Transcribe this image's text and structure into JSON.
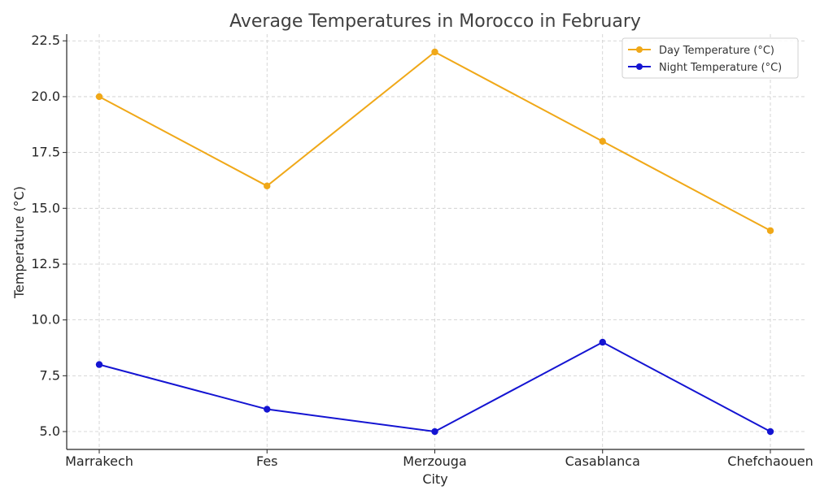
{
  "chart_data": {
    "type": "line",
    "title": "Average Temperatures in Morocco in February",
    "xlabel": "City",
    "ylabel": "Temperature (°C)",
    "categories": [
      "Marrakech",
      "Fes",
      "Merzouga",
      "Casablanca",
      "Chefchaouen"
    ],
    "yticks": [
      "5.0",
      "7.5",
      "10.0",
      "12.5",
      "15.0",
      "17.5",
      "20.0",
      "22.5"
    ],
    "ylim": [
      4.2,
      22.8
    ],
    "grid": true,
    "legend_position": "top-right",
    "series": [
      {
        "name": "Day Temperature (°C)",
        "values": [
          20,
          16,
          22,
          18,
          14
        ],
        "color": "#f0a818"
      },
      {
        "name": "Night Temperature (°C)",
        "values": [
          8,
          6,
          5,
          9,
          5
        ],
        "color": "#1414d2"
      }
    ]
  }
}
